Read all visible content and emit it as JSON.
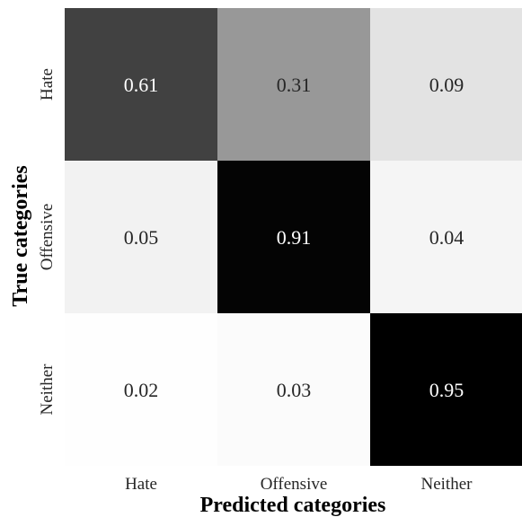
{
  "chart_data": {
    "type": "heatmap",
    "title": "",
    "xlabel": "Predicted categories",
    "ylabel": "True categories",
    "x_categories": [
      "Hate",
      "Offensive",
      "Neither"
    ],
    "y_categories": [
      "Hate",
      "Offensive",
      "Neither"
    ],
    "values": [
      [
        0.61,
        0.31,
        0.09
      ],
      [
        0.05,
        0.91,
        0.04
      ],
      [
        0.02,
        0.03,
        0.95
      ]
    ],
    "value_labels": [
      [
        "0.61",
        "0.31",
        "0.09"
      ],
      [
        "0.05",
        "0.91",
        "0.04"
      ],
      [
        "0.02",
        "0.03",
        "0.95"
      ]
    ],
    "colormap": "Greys",
    "grid": false,
    "legend": "none"
  }
}
